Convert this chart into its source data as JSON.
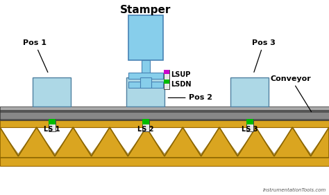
{
  "bg_color": "#ffffff",
  "roller_color": "#DAA520",
  "roller_dark": "#8B6500",
  "pos_box_color": "#add8e6",
  "pos_box_edge": "#5080a0",
  "stamper_color": "#87CEEB",
  "stamper_edge": "#4682b4",
  "belt_dark": "#555555",
  "belt_mid": "#808080",
  "belt_light": "#aaaaaa",
  "sensor_body": "#e8e8e8",
  "sensor_green": "#00bb00",
  "sensor_magenta": "#cc00cc",
  "watermark": "InstrumentationTools.com",
  "watermark_color": "#555555",
  "conveyor_label": "Conveyor",
  "stamper_label": "Stamper",
  "pos1_label": "Pos 1",
  "pos2_label": "Pos 2",
  "pos3_label": "Pos 3",
  "ls1_label": "LS 1",
  "ls2_label": "LS 2",
  "ls3_label": "LS 3",
  "lsup_label": "LSUP",
  "lsdn_label": "LSDN"
}
